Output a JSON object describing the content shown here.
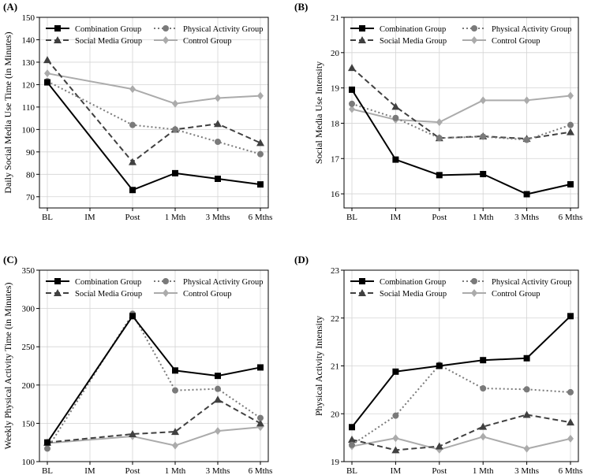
{
  "figure": {
    "background": "#ffffff"
  },
  "styles": {
    "Combination Group": {
      "color": "#000000",
      "dash": "",
      "marker": "square"
    },
    "Physical Activity Group": {
      "color": "#7a7a7a",
      "dash": "2 3",
      "marker": "circle"
    },
    "Social Media Group": {
      "color": "#404040",
      "dash": "7 4",
      "marker": "triangle"
    },
    "Control Group": {
      "color": "#ababab",
      "dash": "",
      "marker": "diamond"
    }
  },
  "legend_order": [
    "Combination Group",
    "Physical Activity Group",
    "Social Media Group",
    "Control Group"
  ],
  "chart_data": [
    {
      "panel_label": "(A)",
      "type": "line",
      "ylabel": "Daily Social Media Use Time (in Minutes)",
      "xlabel": "",
      "categories": [
        "BL",
        "IM",
        "Post",
        "1 Mth",
        "3 Mths",
        "6 Mths"
      ],
      "ylim": [
        65,
        150
      ],
      "yticks": [
        70,
        80,
        90,
        100,
        110,
        120,
        130,
        140,
        150
      ],
      "grid": true,
      "legend": "top-right",
      "series": [
        {
          "name": "Combination Group",
          "values": [
            121,
            null,
            73,
            80.5,
            78,
            75.5
          ]
        },
        {
          "name": "Physical Activity Group",
          "values": [
            121.5,
            null,
            102,
            100,
            94.5,
            89
          ]
        },
        {
          "name": "Social Media Group",
          "values": [
            131,
            null,
            85.5,
            100,
            102.5,
            94
          ]
        },
        {
          "name": "Control Group",
          "values": [
            125,
            null,
            118,
            111.5,
            114,
            115
          ]
        }
      ]
    },
    {
      "panel_label": "(B)",
      "type": "line",
      "ylabel": "Social Media Use Intensity",
      "xlabel": "",
      "categories": [
        "BL",
        "IM",
        "Post",
        "1 Mth",
        "3 Mths",
        "6 Mths"
      ],
      "ylim": [
        15.6,
        21
      ],
      "yticks": [
        16,
        17,
        18,
        19,
        20,
        21
      ],
      "grid": true,
      "legend": "top-right",
      "series": [
        {
          "name": "Combination Group",
          "values": [
            18.95,
            16.97,
            16.53,
            16.56,
            15.99,
            16.27
          ]
        },
        {
          "name": "Physical Activity Group",
          "values": [
            18.55,
            18.15,
            17.58,
            17.62,
            17.53,
            17.95
          ]
        },
        {
          "name": "Social Media Group",
          "values": [
            19.57,
            18.47,
            17.58,
            17.63,
            17.56,
            17.75
          ]
        },
        {
          "name": "Control Group",
          "values": [
            18.4,
            18.1,
            18.03,
            18.65,
            18.65,
            18.78
          ]
        }
      ]
    },
    {
      "panel_label": "(C)",
      "type": "line",
      "ylabel": "Weekly Physical Activity Time (in Minutes)",
      "xlabel": "",
      "categories": [
        "BL",
        "IM",
        "Post",
        "1 Mth",
        "3 Mths",
        "6 Mths"
      ],
      "ylim": [
        100,
        350
      ],
      "yticks": [
        100,
        150,
        200,
        250,
        300,
        350
      ],
      "grid": true,
      "legend": "top-right",
      "series": [
        {
          "name": "Combination Group",
          "values": [
            125,
            null,
            290,
            219,
            212,
            223
          ]
        },
        {
          "name": "Physical Activity Group",
          "values": [
            117,
            null,
            293,
            193,
            195,
            157
          ]
        },
        {
          "name": "Social Media Group",
          "values": [
            125,
            null,
            136,
            139,
            181,
            150
          ]
        },
        {
          "name": "Control Group",
          "values": [
            124,
            null,
            133,
            121,
            140,
            145
          ]
        }
      ]
    },
    {
      "panel_label": "(D)",
      "type": "line",
      "ylabel": "Physical Activity Intensity",
      "xlabel": "",
      "categories": [
        "BL",
        "IM",
        "Post",
        "1 Mth",
        "3 Mths",
        "6 Mths"
      ],
      "ylim": [
        19,
        23
      ],
      "yticks": [
        19,
        20,
        21,
        22,
        23
      ],
      "grid": true,
      "legend": "top-right",
      "series": [
        {
          "name": "Combination Group",
          "values": [
            19.72,
            20.88,
            21.0,
            21.12,
            21.16,
            22.04
          ]
        },
        {
          "name": "Physical Activity Group",
          "values": [
            19.35,
            19.96,
            21.02,
            20.53,
            20.51,
            20.45
          ]
        },
        {
          "name": "Social Media Group",
          "values": [
            19.46,
            19.24,
            19.32,
            19.73,
            19.98,
            19.82
          ]
        },
        {
          "name": "Control Group",
          "values": [
            19.32,
            19.49,
            19.25,
            19.52,
            19.27,
            19.48
          ]
        }
      ]
    }
  ]
}
